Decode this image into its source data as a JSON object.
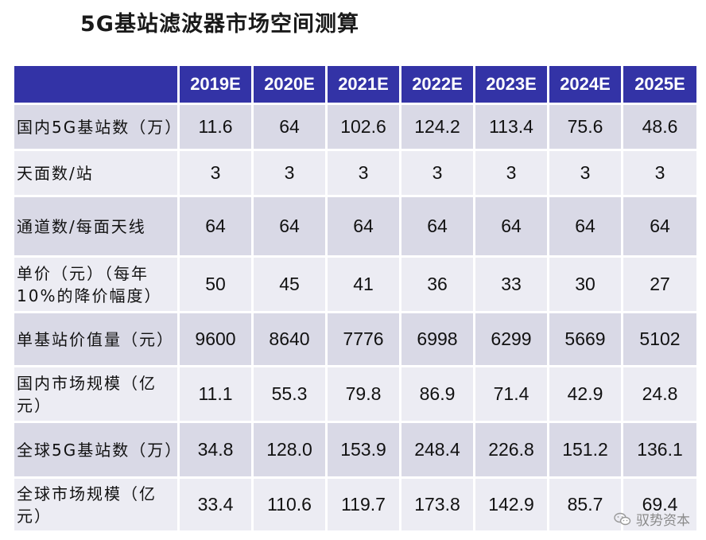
{
  "title": "5G基站滤波器市场空间测算",
  "header": [
    "2019E",
    "2020E",
    "2021E",
    "2022E",
    "2023E",
    "2024E",
    "2025E"
  ],
  "rows": [
    {
      "label": "国内5G基站数（万）",
      "values": [
        "11.6",
        "64",
        "102.6",
        "124.2",
        "113.4",
        "75.6",
        "48.6"
      ]
    },
    {
      "label": "天面数/站",
      "values": [
        "3",
        "3",
        "3",
        "3",
        "3",
        "3",
        "3"
      ]
    },
    {
      "label": "通道数/每面天线",
      "values": [
        "64",
        "64",
        "64",
        "64",
        "64",
        "64",
        "64"
      ]
    },
    {
      "label": "单价（元）（每年10%的降价幅度）",
      "values": [
        "50",
        "45",
        "41",
        "36",
        "33",
        "30",
        "27"
      ]
    },
    {
      "label": "单基站价值量（元）",
      "values": [
        "9600",
        "8640",
        "7776",
        "6998",
        "6299",
        "5669",
        "5102"
      ]
    },
    {
      "label": "国内市场规模（亿元）",
      "values": [
        "11.1",
        "55.3",
        "79.8",
        "86.9",
        "71.4",
        "42.9",
        "24.8"
      ]
    },
    {
      "label": "全球5G基站数（万）",
      "values": [
        "34.8",
        "128.0",
        "153.9",
        "248.4",
        "226.8",
        "151.2",
        "136.1"
      ]
    },
    {
      "label": "全球市场规模（亿元）",
      "values": [
        "33.4",
        "110.6",
        "119.7",
        "173.8",
        "142.9",
        "85.7",
        "69.4"
      ]
    }
  ],
  "watermark": {
    "text": "驭势资本",
    "icon": "wechat-icon"
  }
}
